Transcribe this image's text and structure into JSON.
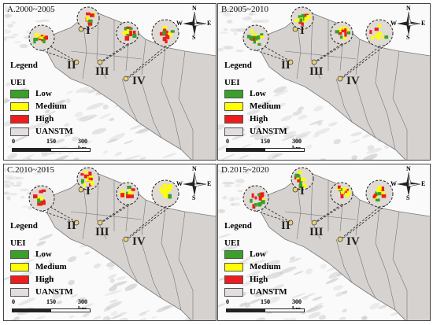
{
  "panels": [
    {
      "title": "A.2000~2005"
    },
    {
      "title": "B.2005~2010"
    },
    {
      "title": "C.2010~2015"
    },
    {
      "title": "D.2015~2020"
    }
  ],
  "legend": {
    "title": "Legend",
    "subtitle": "UEI",
    "items": [
      {
        "label": "Low",
        "color": "#3aa02a"
      },
      {
        "label": "Medium",
        "color": "#ffff00"
      },
      {
        "label": "High",
        "color": "#ee1c1c"
      },
      {
        "label": "UANSTM",
        "color": "#e3dedd"
      }
    ]
  },
  "scale": {
    "labels": [
      "0",
      "150",
      "300 km"
    ]
  },
  "compass": {
    "n": "N",
    "s": "S",
    "e": "E",
    "w": "W"
  },
  "regions": [
    "I",
    "II",
    "III",
    "IV"
  ],
  "colors": {
    "land": "#d6d2cf",
    "terrain": "#c9c9c9",
    "boundary": "#777777",
    "inset_fill": "#dfdad6"
  }
}
